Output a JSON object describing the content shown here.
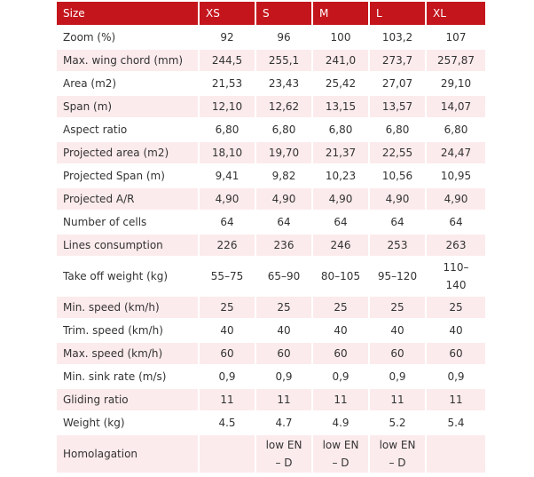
{
  "table": {
    "headers": [
      "Size",
      "XS",
      "S",
      "M",
      "L",
      "XL"
    ],
    "rows": [
      {
        "label": "Zoom (%)",
        "values": [
          "92",
          "96",
          "100",
          "103,2",
          "107"
        ]
      },
      {
        "label": "Max. wing chord (mm)",
        "values": [
          "244,5",
          "255,1",
          "241,0",
          "273,7",
          "257,87"
        ]
      },
      {
        "label": "Area (m2)",
        "values": [
          "21,53",
          "23,43",
          "25,42",
          "27,07",
          "29,10"
        ]
      },
      {
        "label": "Span (m)",
        "values": [
          "12,10",
          "12,62",
          "13,15",
          "13,57",
          "14,07"
        ]
      },
      {
        "label": "Aspect ratio",
        "values": [
          "6,80",
          "6,80",
          "6,80",
          "6,80",
          "6,80"
        ]
      },
      {
        "label": "Projected area (m2)",
        "values": [
          "18,10",
          "19,70",
          "21,37",
          "22,55",
          "24,47"
        ]
      },
      {
        "label": "Projected Span (m)",
        "values": [
          "9,41",
          "9,82",
          "10,23",
          "10,56",
          "10,95"
        ]
      },
      {
        "label": "Projected A/R",
        "values": [
          "4,90",
          "4,90",
          "4,90",
          "4,90",
          "4,90"
        ]
      },
      {
        "label": "Number of cells",
        "values": [
          "64",
          "64",
          "64",
          "64",
          "64"
        ]
      },
      {
        "label": "Lines consumption",
        "values": [
          "226",
          "236",
          "246",
          "253",
          "263"
        ]
      },
      {
        "label": "Take off weight (kg)",
        "values": [
          "55–75",
          "65–90",
          "80–105",
          "95–120",
          "110–\n140"
        ]
      },
      {
        "label": "Min. speed (km/h)",
        "values": [
          "25",
          "25",
          "25",
          "25",
          "25"
        ]
      },
      {
        "label": "Trim. speed (km/h)",
        "values": [
          "40",
          "40",
          "40",
          "40",
          "40"
        ]
      },
      {
        "label": "Max. speed (km/h)",
        "values": [
          "60",
          "60",
          "60",
          "60",
          "60"
        ]
      },
      {
        "label": "Min. sink rate (m/s)",
        "values": [
          "0,9",
          "0,9",
          "0,9",
          "0,9",
          "0,9"
        ]
      },
      {
        "label": "Gliding ratio",
        "values": [
          "11",
          "11",
          "11",
          "11",
          "11"
        ]
      },
      {
        "label": "Weight (kg)",
        "values": [
          "4.5",
          "4.7",
          "4.9",
          "5.2",
          "5.4"
        ]
      },
      {
        "label": "Homolagation",
        "values": [
          "",
          "low EN\n– D",
          "low EN\n– D",
          "low EN\n– D",
          ""
        ]
      }
    ]
  }
}
